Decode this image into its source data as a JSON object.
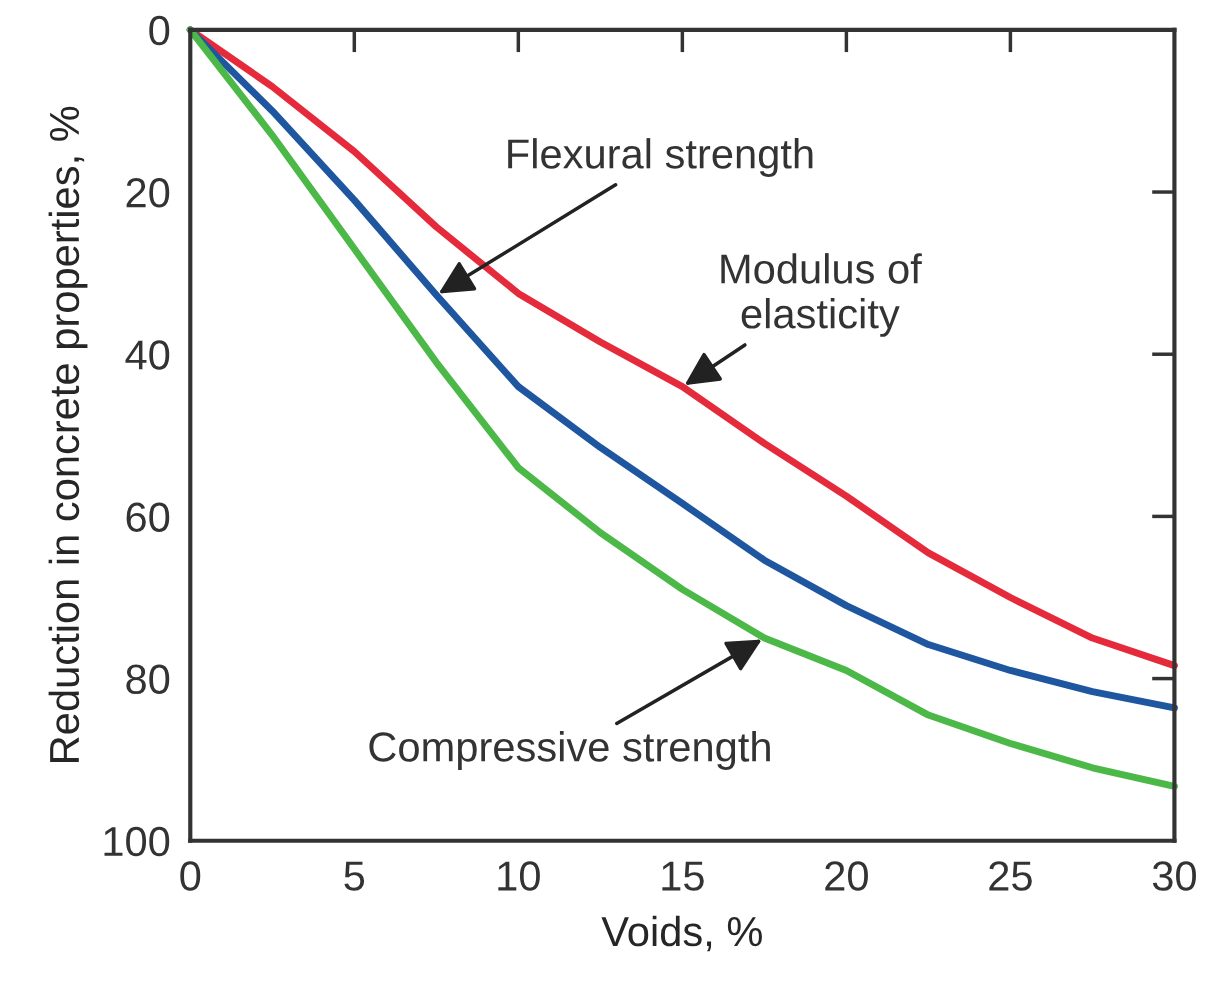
{
  "chart_data": {
    "type": "line",
    "xlabel": "Voids, %",
    "ylabel": "Reduction in concrete properties, %",
    "x": [
      0,
      2.5,
      5,
      7.5,
      10,
      12.5,
      15,
      17.5,
      20,
      22.5,
      25,
      27.5,
      30
    ],
    "series": [
      {
        "color": "#e52b3b",
        "values": [
          0,
          7,
          15,
          24.3,
          32.5,
          38.5,
          44,
          51,
          57.5,
          64.5,
          70,
          75,
          78.4
        ]
      },
      {
        "color": "#1f56a0",
        "values": [
          0,
          10,
          21,
          32.7,
          44,
          51.5,
          58.4,
          65.4,
          71,
          75.8,
          79,
          81.6,
          83.6
        ]
      },
      {
        "color": "#4cb848",
        "values": [
          0,
          13,
          27,
          41,
          54,
          62,
          69,
          75,
          79,
          84.5,
          88,
          91,
          93.3
        ]
      }
    ],
    "xlim": [
      0,
      30
    ],
    "xticks": [
      0,
      5,
      10,
      15,
      20,
      25,
      30
    ],
    "ylim": [
      100,
      0
    ],
    "yticks": [
      0,
      20,
      40,
      60,
      80,
      100
    ],
    "grid": false,
    "marker": "none",
    "line_style": "solid",
    "annotations": [
      {
        "text": "Flexural strength",
        "x": 7.5,
        "y": 32.7
      },
      {
        "text": "Modulus of\nelasticity",
        "x": 15,
        "y": 44
      },
      {
        "text": "Compressive strength",
        "x": 17.5,
        "y": 75
      }
    ]
  }
}
